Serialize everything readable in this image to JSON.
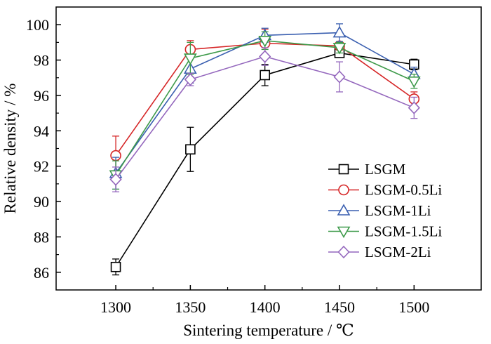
{
  "chart_data": {
    "type": "line",
    "title": "",
    "xlabel": "Sintering temperature / ℃",
    "ylabel": "Relative density / %",
    "xlim": [
      1260,
      1545
    ],
    "ylim": [
      85,
      101
    ],
    "xticks": [
      1300,
      1350,
      1400,
      1450,
      1500
    ],
    "yticks": [
      86,
      88,
      90,
      92,
      94,
      96,
      98,
      100
    ],
    "x": [
      1300,
      1350,
      1400,
      1450,
      1500
    ],
    "legend_position": "lower-right",
    "grid": false,
    "series": [
      {
        "name": "LSGM",
        "marker": "square",
        "color": "#000000",
        "values": [
          86.3,
          92.95,
          97.15,
          98.4,
          97.75
        ],
        "errors": [
          0.45,
          1.25,
          0.6,
          0.25,
          0.3
        ]
      },
      {
        "name": "LSGM-0.5Li",
        "marker": "circle",
        "color": "#d62728",
        "values": [
          92.6,
          98.6,
          98.95,
          98.8,
          95.8
        ],
        "errors": [
          1.1,
          0.5,
          0.8,
          0.2,
          0.4
        ]
      },
      {
        "name": "LSGM-1Li",
        "marker": "triangle-up",
        "color": "#3a5fb0",
        "values": [
          91.6,
          97.5,
          99.4,
          99.55,
          97.2
        ],
        "errors": [
          0.9,
          0.8,
          0.4,
          0.5,
          0.4
        ]
      },
      {
        "name": "LSGM-1.5Li",
        "marker": "triangle-down",
        "color": "#3d9a4a",
        "values": [
          91.5,
          98.1,
          99.1,
          98.7,
          96.8
        ],
        "errors": [
          0.8,
          0.9,
          0.5,
          0.3,
          0.4
        ]
      },
      {
        "name": "LSGM-2Li",
        "marker": "diamond",
        "color": "#9467bd",
        "values": [
          91.25,
          96.9,
          98.2,
          97.05,
          95.3
        ],
        "errors": [
          0.7,
          0.35,
          0.5,
          0.85,
          0.6
        ]
      }
    ]
  }
}
